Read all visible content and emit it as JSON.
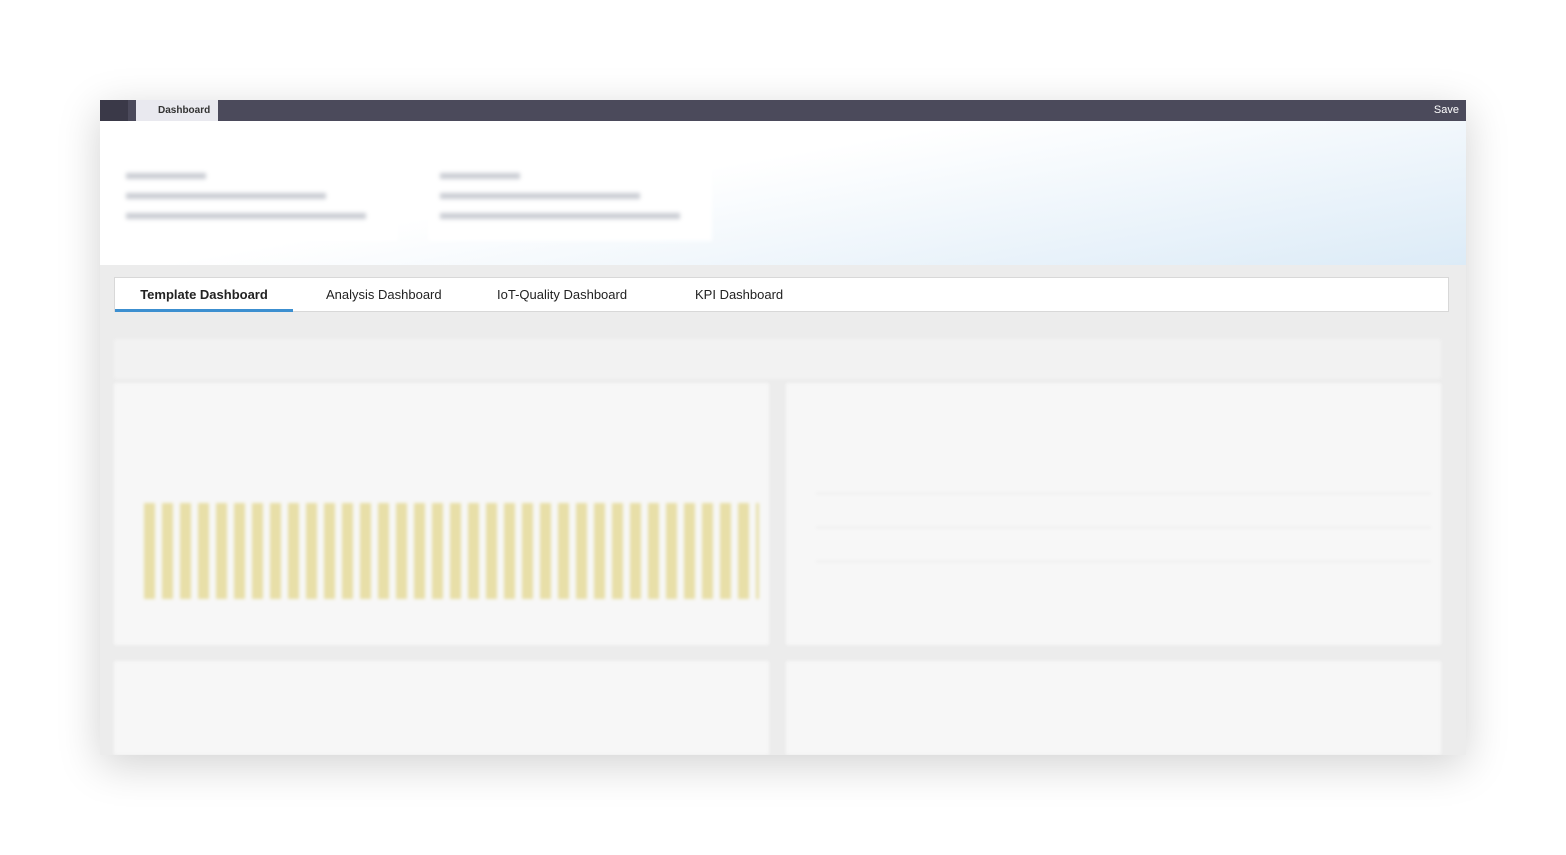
{
  "topbar": {
    "tab": "Dashboard",
    "save": "Save"
  },
  "tabs": [
    "Template Dashboard",
    "Analysis Dashboard",
    "IoT-Quality Dashboard",
    "KPI Dashboard"
  ]
}
